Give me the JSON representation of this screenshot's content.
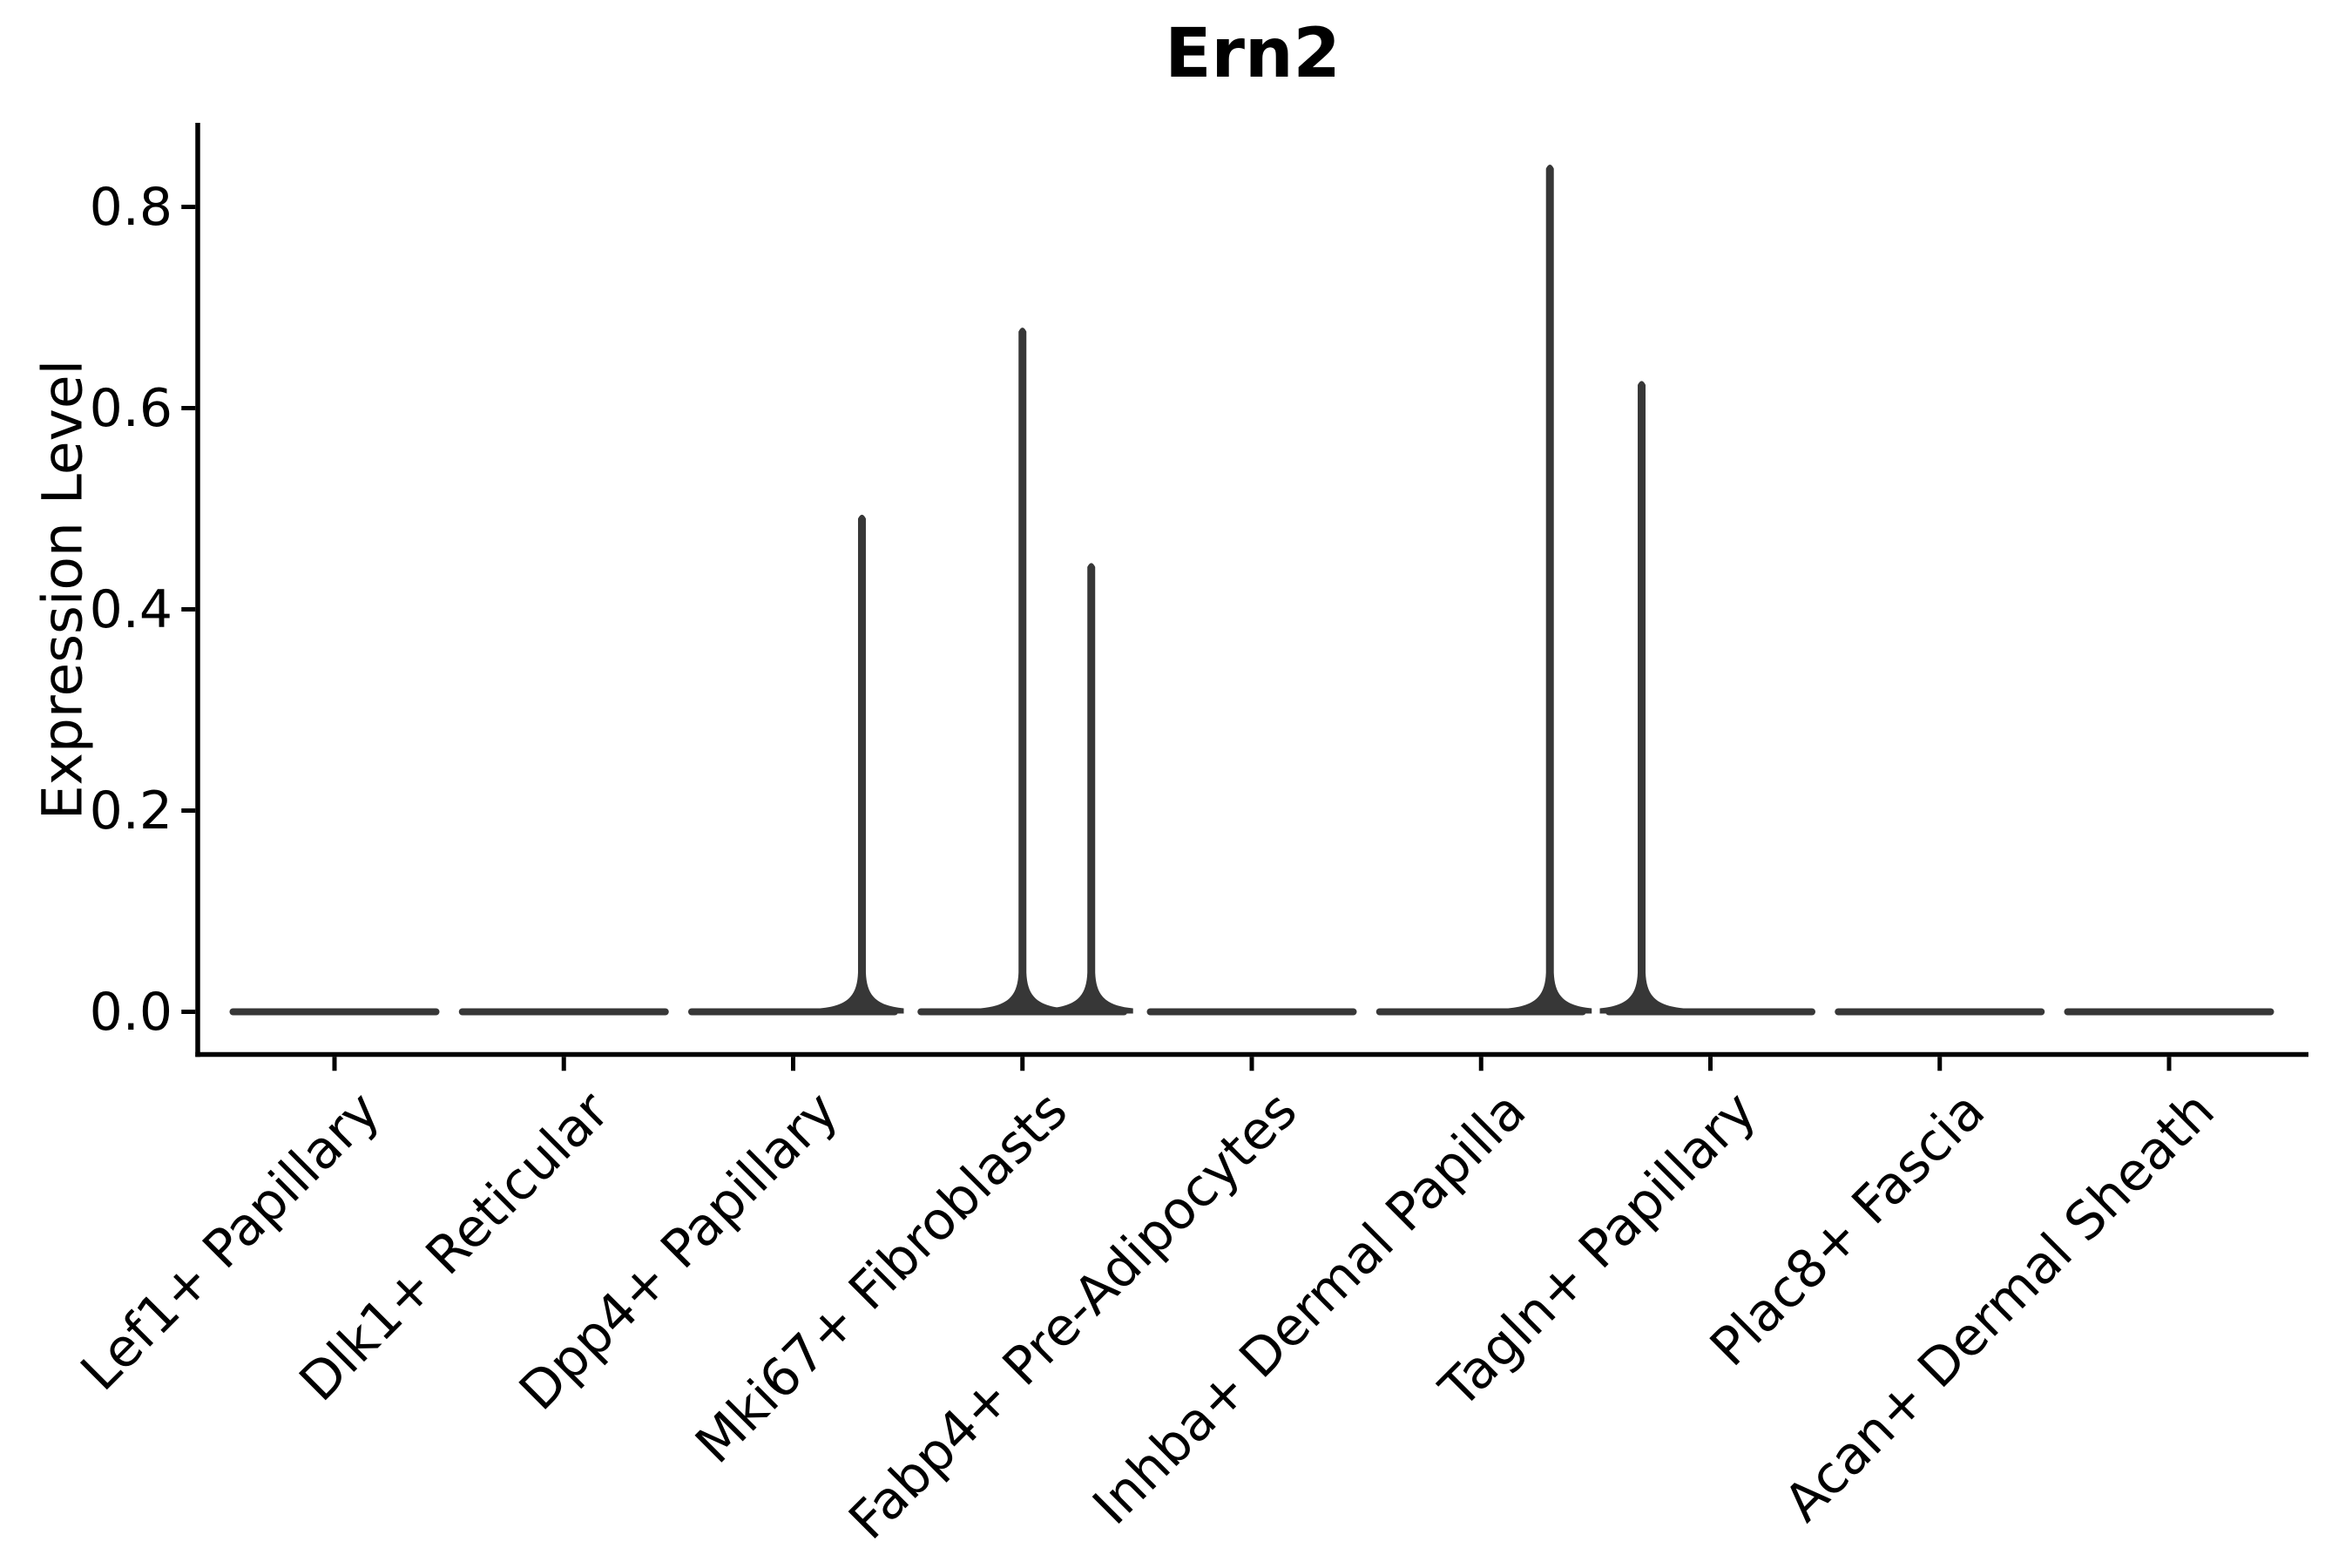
{
  "chart_data": {
    "type": "violin",
    "title": "Ern2",
    "xlabel": "",
    "ylabel": "Expression Level",
    "categories": [
      "Lef1+ Papillary",
      "Dlk1+ Reticular",
      "Dpp4+ Papillary",
      "Mki67+ Fibroblasts",
      "Fabp4+ Pre-Adipocytes",
      "Inhba+ Dermal Papilla",
      "Tagln+ Papillary",
      "Plac8+ Fascia",
      "Acan+ Dermal Sheath"
    ],
    "ytick_labels": [
      "0.0",
      "0.2",
      "0.4",
      "0.6",
      "0.8"
    ],
    "ylim": [
      0,
      0.88
    ],
    "grid": false,
    "legend": "none",
    "background": "#ffffff",
    "axis_color": "#000000",
    "violin_color": "#373737",
    "violins": [
      {
        "category": "Lef1+ Papillary",
        "baseline_value": 0.0,
        "spikes": []
      },
      {
        "category": "Dlk1+ Reticular",
        "baseline_value": 0.0,
        "spikes": []
      },
      {
        "category": "Dpp4+ Papillary",
        "baseline_value": 0.0,
        "spikes": [
          {
            "offset_frac": 0.3,
            "peak_value": 0.494
          }
        ]
      },
      {
        "category": "Mki67+ Fibroblasts",
        "baseline_value": 0.0,
        "spikes": [
          {
            "offset_frac": 0.0,
            "peak_value": 0.68
          },
          {
            "offset_frac": 0.3,
            "peak_value": 0.446
          }
        ]
      },
      {
        "category": "Fabp4+ Pre-Adipocytes",
        "baseline_value": 0.0,
        "spikes": []
      },
      {
        "category": "Inhba+ Dermal Papilla",
        "baseline_value": 0.0,
        "spikes": [
          {
            "offset_frac": 0.3,
            "peak_value": 0.842
          }
        ]
      },
      {
        "category": "Tagln+ Papillary",
        "baseline_value": 0.0,
        "spikes": [
          {
            "offset_frac": -0.3,
            "peak_value": 0.627
          }
        ]
      },
      {
        "category": "Plac8+ Fascia",
        "baseline_value": 0.0,
        "spikes": []
      },
      {
        "category": "Acan+ Dermal Sheath",
        "baseline_value": 0.0,
        "spikes": []
      }
    ]
  }
}
